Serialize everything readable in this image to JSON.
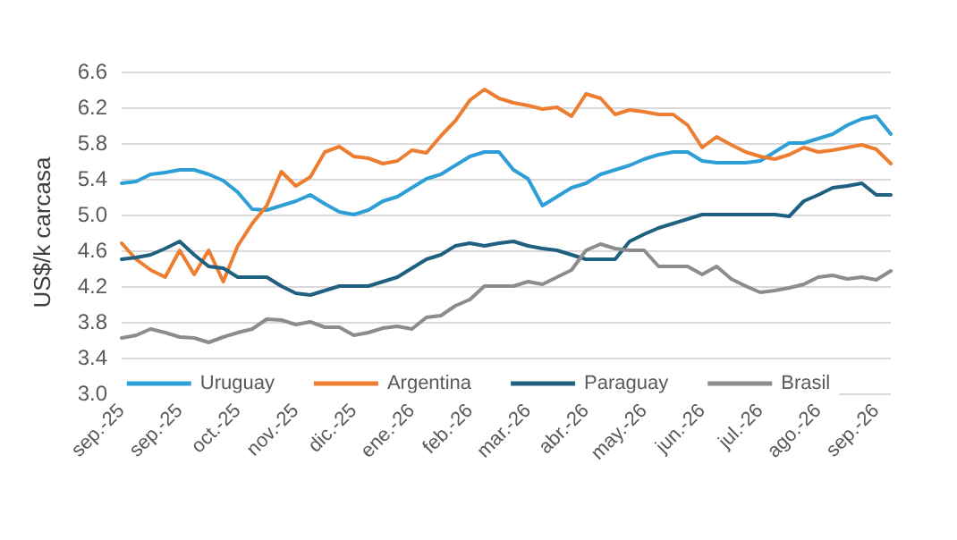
{
  "chart_data": {
    "type": "line",
    "ylabel": "US$/k carcasa",
    "categories": [
      "sep.-25",
      null,
      null,
      null,
      "sep.-25",
      null,
      null,
      null,
      "oct.-25",
      null,
      null,
      null,
      "nov.-25",
      null,
      null,
      null,
      "dic.-25",
      null,
      null,
      null,
      "ene.-26",
      null,
      null,
      null,
      "feb.-26",
      null,
      null,
      null,
      "mar.-26",
      null,
      null,
      null,
      "abr.-26",
      null,
      null,
      null,
      "may.-26",
      null,
      null,
      null,
      "jun.-26",
      null,
      null,
      null,
      "jul.-26",
      null,
      null,
      null,
      "ago.-26",
      null,
      null,
      null,
      "sep.-26",
      null
    ],
    "series": [
      {
        "name": "Uruguay",
        "color": "#2e9fd6",
        "values": [
          5.35,
          5.37,
          5.45,
          5.47,
          5.5,
          5.5,
          5.45,
          5.38,
          5.25,
          5.06,
          5.05,
          5.1,
          5.15,
          5.22,
          5.12,
          5.03,
          5.0,
          5.05,
          5.15,
          5.2,
          5.3,
          5.4,
          5.45,
          5.55,
          5.65,
          5.7,
          5.7,
          5.5,
          5.4,
          5.1,
          5.2,
          5.3,
          5.35,
          5.45,
          5.5,
          5.55,
          5.62,
          5.67,
          5.7,
          5.7,
          5.6,
          5.58,
          5.58,
          5.58,
          5.6,
          5.7,
          5.8,
          5.8,
          5.85,
          5.9,
          6.0,
          6.07,
          6.1,
          5.9
        ]
      },
      {
        "name": "Argentina",
        "color": "#ed7d31",
        "values": [
          4.68,
          4.5,
          4.38,
          4.3,
          4.6,
          4.33,
          4.6,
          4.25,
          4.65,
          4.9,
          5.1,
          5.48,
          5.32,
          5.42,
          5.7,
          5.76,
          5.65,
          5.63,
          5.57,
          5.6,
          5.72,
          5.69,
          5.88,
          6.05,
          6.28,
          6.4,
          6.3,
          6.25,
          6.22,
          6.18,
          6.2,
          6.1,
          6.35,
          6.3,
          6.12,
          6.17,
          6.15,
          6.12,
          6.12,
          6.0,
          5.75,
          5.87,
          5.78,
          5.7,
          5.65,
          5.62,
          5.67,
          5.75,
          5.7,
          5.72,
          5.75,
          5.78,
          5.73,
          5.57
        ]
      },
      {
        "name": "Paraguay",
        "color": "#1f5f7f",
        "values": [
          4.5,
          4.52,
          4.55,
          4.62,
          4.7,
          4.55,
          4.42,
          4.4,
          4.3,
          4.3,
          4.3,
          4.2,
          4.12,
          4.1,
          4.15,
          4.2,
          4.2,
          4.2,
          4.25,
          4.3,
          4.4,
          4.5,
          4.55,
          4.65,
          4.68,
          4.65,
          4.68,
          4.7,
          4.65,
          4.62,
          4.6,
          4.55,
          4.5,
          4.5,
          4.5,
          4.7,
          4.78,
          4.85,
          4.9,
          4.95,
          5.0,
          5.0,
          5.0,
          5.0,
          5.0,
          5.0,
          4.98,
          5.15,
          5.22,
          5.3,
          5.32,
          5.35,
          5.22,
          5.22
        ]
      },
      {
        "name": "Brasil",
        "color": "#8c8c8c",
        "values": [
          3.62,
          3.65,
          3.72,
          3.68,
          3.63,
          3.62,
          3.57,
          3.63,
          3.68,
          3.72,
          3.83,
          3.82,
          3.77,
          3.8,
          3.74,
          3.74,
          3.65,
          3.68,
          3.73,
          3.75,
          3.72,
          3.85,
          3.87,
          3.98,
          4.05,
          4.2,
          4.2,
          4.2,
          4.25,
          4.22,
          4.3,
          4.38,
          4.6,
          4.67,
          4.62,
          4.6,
          4.6,
          4.42,
          4.42,
          4.42,
          4.33,
          4.42,
          4.28,
          4.2,
          4.13,
          4.15,
          4.18,
          4.22,
          4.3,
          4.32,
          4.28,
          4.3,
          4.27,
          4.37
        ]
      }
    ],
    "ylim": [
      3.0,
      6.6
    ],
    "yticks": [
      {
        "value": 3.0,
        "label": "3.0"
      },
      {
        "value": 3.4,
        "label": "3.4"
      },
      {
        "value": 3.8,
        "label": "3.8"
      },
      {
        "value": 4.2,
        "label": "4.2"
      },
      {
        "value": 4.6,
        "label": "4.6"
      },
      {
        "value": 5.0,
        "label": "5.0"
      },
      {
        "value": 5.4,
        "label": "5.4"
      },
      {
        "value": 5.8,
        "label": "5.8"
      },
      {
        "value": 6.2,
        "label": "6.2"
      },
      {
        "value": 6.6,
        "label": "6.6"
      }
    ],
    "grid": "y",
    "legend": "bottom",
    "marker": "none",
    "line_style": "solid"
  }
}
